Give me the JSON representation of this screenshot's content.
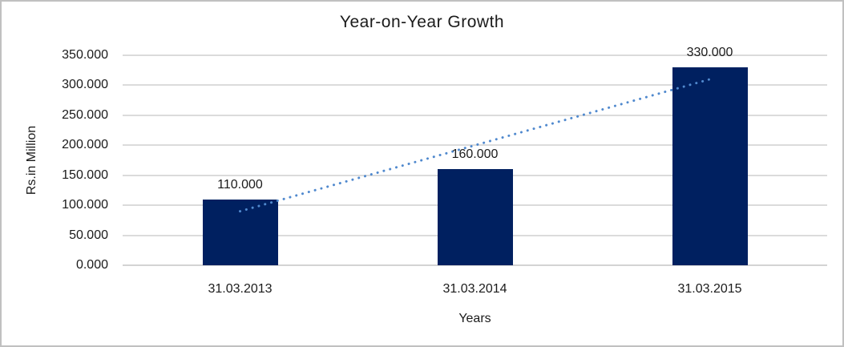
{
  "chart_data": {
    "type": "bar",
    "title": "Year-on-Year Growth",
    "xlabel": "Years",
    "ylabel": "Rs.in Million",
    "categories": [
      "31.03.2013",
      "31.03.2014",
      "31.03.2015"
    ],
    "values": [
      110,
      160,
      330
    ],
    "data_labels": [
      "110.000",
      "160.000",
      "330.000"
    ],
    "ytick_labels": [
      "0.000",
      "50.000",
      "100.000",
      "150.000",
      "200.000",
      "250.000",
      "300.000",
      "350.000"
    ],
    "ylim": [
      0,
      350
    ],
    "ytick_step": 50,
    "grid": true,
    "legend": "none",
    "trendline": {
      "type": "linear",
      "style": "dotted",
      "start_value": 90,
      "end_value": 310
    },
    "colors": {
      "bar": "#002060",
      "trendline": "#5089ce",
      "gridline": "#dbdbdb",
      "axis_line": "#d3d3d3",
      "text": "#1b1b1b",
      "border": "#c0c0c0",
      "background": "#ffffff"
    }
  }
}
